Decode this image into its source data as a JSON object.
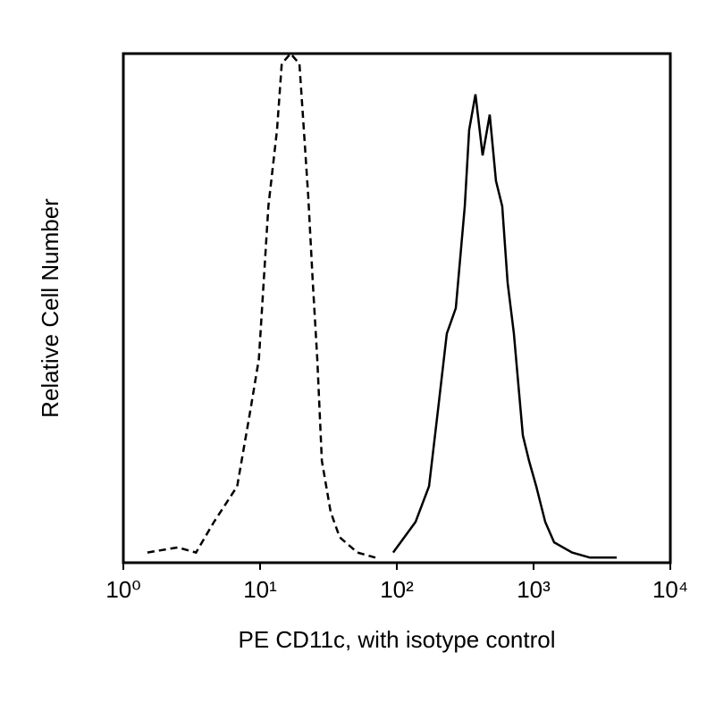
{
  "chart_data": {
    "type": "line",
    "x_label": "PE CD11c, with isotype control",
    "y_label": "Relative Cell Number",
    "xlim": [
      1,
      10000
    ],
    "xscale": "log",
    "xticks": [
      {
        "value": 1,
        "label": "10⁰"
      },
      {
        "value": 10,
        "label": "10¹"
      },
      {
        "value": 100,
        "label": "10²"
      },
      {
        "value": 1000,
        "label": "10³"
      },
      {
        "value": 10000,
        "label": "10⁴"
      }
    ],
    "ylim": [
      0,
      100
    ],
    "series": [
      {
        "color": "#000000",
        "dashed": true,
        "x": [
          1.5,
          2.5,
          3.4,
          4.6,
          6.8,
          8.5,
          9.8,
          11.5,
          13.3,
          14.4,
          16.7,
          19.4,
          20.9,
          22.5,
          24.3,
          26.2,
          28.3,
          32.8,
          38.2,
          51.5,
          69.7
        ],
        "values": [
          2,
          3,
          2,
          8,
          15,
          30,
          40,
          70,
          85,
          98,
          100,
          98,
          85,
          72,
          55,
          40,
          20,
          10,
          5,
          2,
          1
        ]
      },
      {
        "color": "#000000",
        "dashed": false,
        "x": [
          94,
          137,
          172,
          200,
          232,
          270,
          314,
          338,
          376,
          424,
          478,
          531,
          590,
          646,
          718,
          774,
          835,
          927,
          1046,
          1217,
          1414,
          1910,
          2582,
          4055
        ],
        "values": [
          2,
          8,
          15,
          30,
          45,
          50,
          70,
          85,
          92,
          80,
          88,
          75,
          70,
          55,
          45,
          35,
          25,
          20,
          15,
          8,
          4,
          2,
          1,
          1
        ]
      }
    ]
  }
}
